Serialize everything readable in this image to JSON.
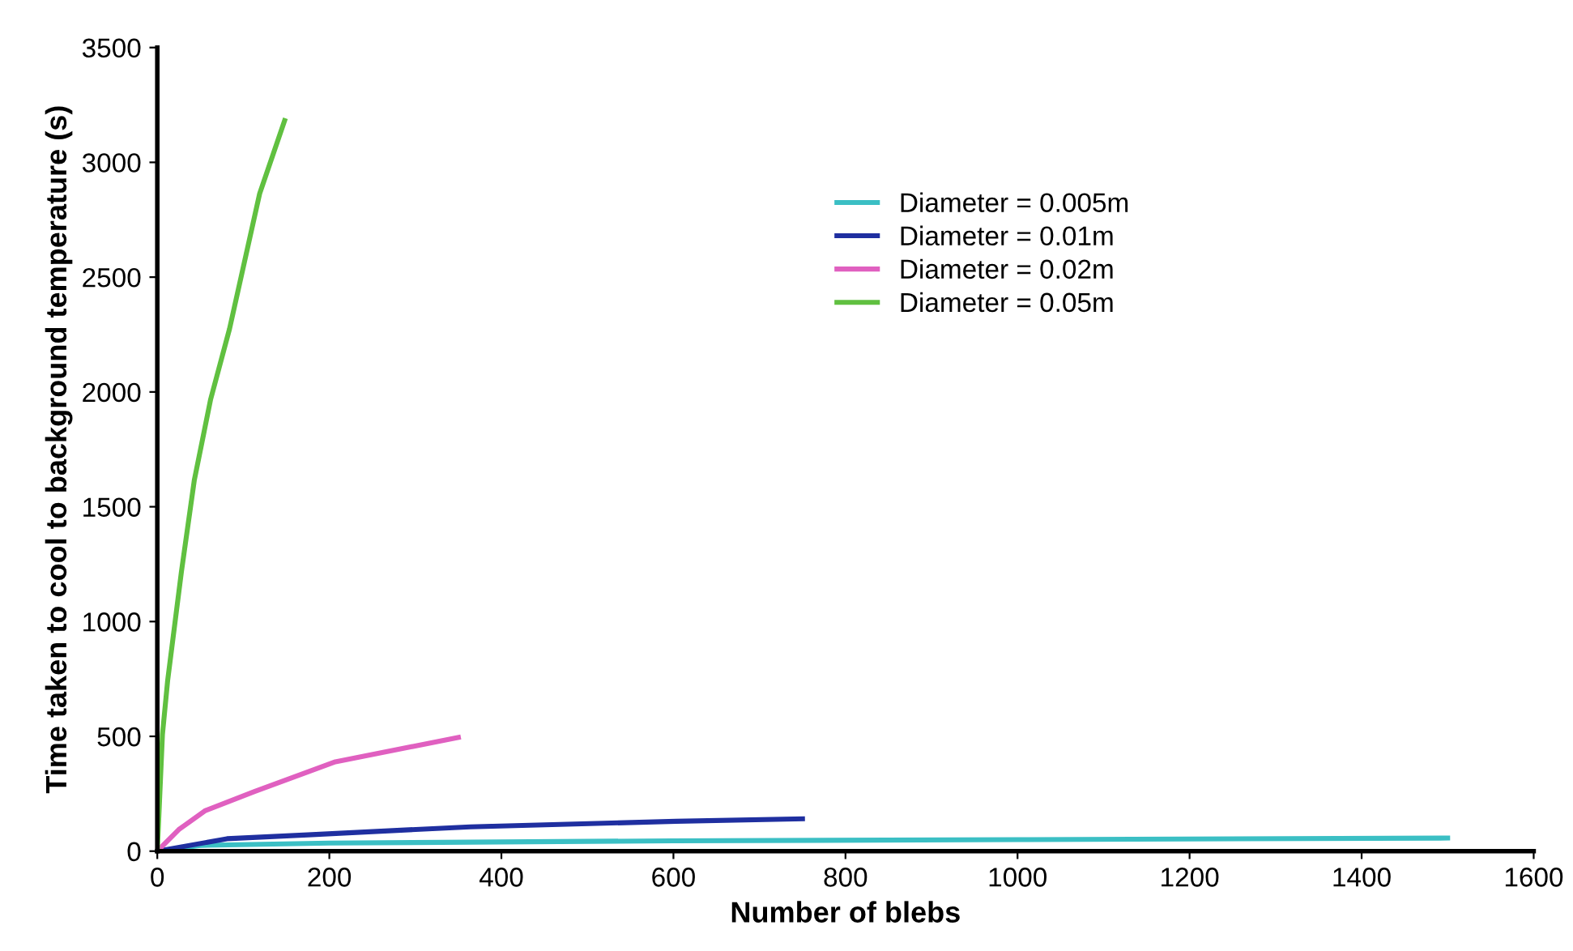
{
  "chart_data": {
    "type": "line",
    "xlabel": "Number of blebs",
    "ylabel": "Time taken to cool to background temperature (s)",
    "xlim": [
      0,
      1600
    ],
    "xticks": [
      0,
      200,
      400,
      600,
      800,
      1000,
      1200,
      1400,
      1600
    ],
    "ylim": [
      0,
      3500
    ],
    "yticks": [
      0,
      500,
      1000,
      1500,
      2000,
      2500,
      3000,
      3500
    ],
    "grid": false,
    "legend": "top",
    "marker": "none",
    "line_style": "solid",
    "series": [
      {
        "name": "Diameter = 0.005m",
        "color": "#3bbfc4",
        "x": [
          0,
          50,
          200,
          600,
          1000,
          1500
        ],
        "values": [
          0,
          25,
          35,
          45,
          50,
          57
        ]
      },
      {
        "name": "Diameter = 0.01m",
        "color": "#1f2fa0",
        "x": [
          0,
          81,
          175,
          364,
          603,
          750
        ],
        "values": [
          0,
          54,
          71,
          106,
          130,
          141
        ]
      },
      {
        "name": "Diameter = 0.02m",
        "color": "#e060c0",
        "x": [
          0,
          25,
          56,
          113,
          207,
          350
        ],
        "values": [
          0,
          94,
          177,
          260,
          389,
          495
        ]
      },
      {
        "name": "Diameter = 0.05m",
        "color": "#60c040",
        "x": [
          0,
          6,
          12,
          28,
          43,
          62,
          84,
          119,
          148
        ],
        "values": [
          0,
          509,
          742,
          1216,
          1615,
          1968,
          2275,
          2864,
          3182
        ]
      }
    ]
  }
}
